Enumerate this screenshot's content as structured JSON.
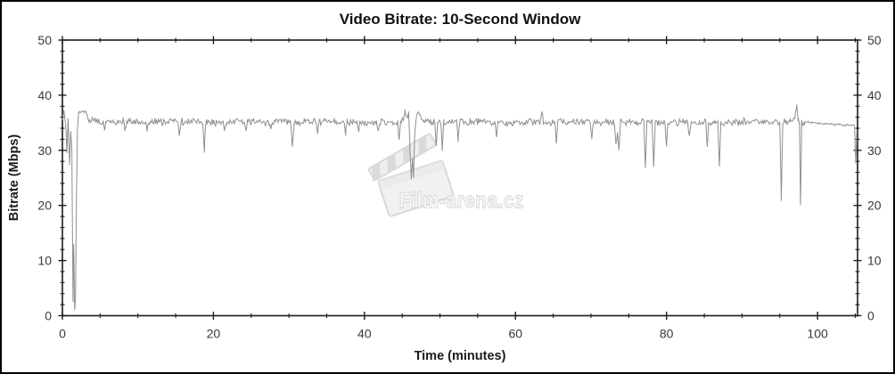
{
  "chart_data": {
    "type": "line",
    "title": "Video Bitrate: 10-Second Window",
    "xlabel": "Time (minutes)",
    "ylabel": "Bitrate (Mbps)",
    "xlim": [
      0,
      105.3
    ],
    "ylim": [
      0,
      50
    ],
    "x_major_ticks": [
      0,
      20,
      40,
      60,
      80,
      100
    ],
    "x_minor_step": 5,
    "y_major_ticks": [
      0,
      10,
      20,
      30,
      40,
      50
    ],
    "y_minor_step": 2,
    "grid": false,
    "legend": "none",
    "axis_color": "#1c1c1c",
    "tick_label_color": "#3a3a3a",
    "series": [
      {
        "name": "video-bitrate-10s-window",
        "color": "#8f8f8f",
        "baseline_mbps": 35.1,
        "keypoints": [
          [
            0,
            35.5
          ],
          [
            0.2,
            37.3
          ],
          [
            0.45,
            34.3
          ],
          [
            0.6,
            29.5
          ],
          [
            0.75,
            35.8
          ],
          [
            0.95,
            27.3
          ],
          [
            1.1,
            33.5
          ],
          [
            1.25,
            30.0
          ],
          [
            1.4,
            2.5
          ],
          [
            1.5,
            13.0
          ],
          [
            1.62,
            1.0
          ],
          [
            1.75,
            3.2
          ],
          [
            1.85,
            21.0
          ],
          [
            2.0,
            34.0
          ],
          [
            2.15,
            36.9
          ],
          [
            3.1,
            37.0
          ],
          [
            3.5,
            35.4
          ],
          [
            5.4,
            35.1
          ],
          [
            5.6,
            33.6
          ],
          [
            5.8,
            35.1
          ],
          [
            8.1,
            35.2
          ],
          [
            8.3,
            33.5
          ],
          [
            8.5,
            35.2
          ],
          [
            11.0,
            35.1
          ],
          [
            11.2,
            33.7
          ],
          [
            11.4,
            35.1
          ],
          [
            15.3,
            35.2
          ],
          [
            15.5,
            32.6
          ],
          [
            15.7,
            35.2
          ],
          [
            18.6,
            35.1
          ],
          [
            18.8,
            30.3
          ],
          [
            19.0,
            35.1
          ],
          [
            21.3,
            35.1
          ],
          [
            21.5,
            33.5
          ],
          [
            21.7,
            35.1
          ],
          [
            24.1,
            35.2
          ],
          [
            24.3,
            33.2
          ],
          [
            24.5,
            35.2
          ],
          [
            27.4,
            35.1
          ],
          [
            27.6,
            33.3
          ],
          [
            27.8,
            35.1
          ],
          [
            30.2,
            35.1
          ],
          [
            30.45,
            30.6
          ],
          [
            30.7,
            35.1
          ],
          [
            33.6,
            35.1
          ],
          [
            33.8,
            33.4
          ],
          [
            34.0,
            35.1
          ],
          [
            37.3,
            35.2
          ],
          [
            37.5,
            33.3
          ],
          [
            37.7,
            35.2
          ],
          [
            39.0,
            35.1
          ],
          [
            39.2,
            33.4
          ],
          [
            39.4,
            35.1
          ],
          [
            41.6,
            35.1
          ],
          [
            41.8,
            33.2
          ],
          [
            42.0,
            35.1
          ],
          [
            44.4,
            35.1
          ],
          [
            44.6,
            31.4
          ],
          [
            44.8,
            35.1
          ],
          [
            45.2,
            36.0
          ],
          [
            45.35,
            37.2
          ],
          [
            45.6,
            35.6
          ],
          [
            45.85,
            37.0
          ],
          [
            46.05,
            30.0
          ],
          [
            46.2,
            25.0
          ],
          [
            46.35,
            29.0
          ],
          [
            46.5,
            24.6
          ],
          [
            46.65,
            33.0
          ],
          [
            46.9,
            36.8
          ],
          [
            47.4,
            36.4
          ],
          [
            47.8,
            35.3
          ],
          [
            49.3,
            35.1
          ],
          [
            49.5,
            31.0
          ],
          [
            49.7,
            35.1
          ],
          [
            50.1,
            35.1
          ],
          [
            50.3,
            30.2
          ],
          [
            50.5,
            35.1
          ],
          [
            52.2,
            35.1
          ],
          [
            52.4,
            32.2
          ],
          [
            52.6,
            35.1
          ],
          [
            55.0,
            35.2
          ],
          [
            57.3,
            35.1
          ],
          [
            57.5,
            32.4
          ],
          [
            57.7,
            35.1
          ],
          [
            60.0,
            35.1
          ],
          [
            63.3,
            35.2
          ],
          [
            63.5,
            37.4
          ],
          [
            63.7,
            35.2
          ],
          [
            65.2,
            35.1
          ],
          [
            65.4,
            31.9
          ],
          [
            65.6,
            35.1
          ],
          [
            68.0,
            35.1
          ],
          [
            69.9,
            35.1
          ],
          [
            70.1,
            32.2
          ],
          [
            70.3,
            35.1
          ],
          [
            73.1,
            35.1
          ],
          [
            73.3,
            30.9
          ],
          [
            73.5,
            33.5
          ],
          [
            73.7,
            30.4
          ],
          [
            73.9,
            35.1
          ],
          [
            76.0,
            35.1
          ],
          [
            77.0,
            35.1
          ],
          [
            77.2,
            26.9
          ],
          [
            77.4,
            35.1
          ],
          [
            78.1,
            35.1
          ],
          [
            78.3,
            26.5
          ],
          [
            78.5,
            35.1
          ],
          [
            79.8,
            35.1
          ],
          [
            80.0,
            30.9
          ],
          [
            80.2,
            35.1
          ],
          [
            82.8,
            35.1
          ],
          [
            83.0,
            32.4
          ],
          [
            83.2,
            35.1
          ],
          [
            85.2,
            35.1
          ],
          [
            85.4,
            30.8
          ],
          [
            85.6,
            35.1
          ],
          [
            86.8,
            35.1
          ],
          [
            87.0,
            26.7
          ],
          [
            87.2,
            35.1
          ],
          [
            90.0,
            35.2
          ],
          [
            93.0,
            35.1
          ],
          [
            95.0,
            35.1
          ],
          [
            95.2,
            20.9
          ],
          [
            95.4,
            35.1
          ],
          [
            96.3,
            35.3
          ],
          [
            97.0,
            35.5
          ],
          [
            97.25,
            38.6
          ],
          [
            97.45,
            35.5
          ],
          [
            97.6,
            35.1
          ],
          [
            97.75,
            20.3
          ],
          [
            97.9,
            35.1
          ],
          [
            98.3,
            35.2
          ],
          [
            100.0,
            34.9
          ],
          [
            102.0,
            34.7
          ],
          [
            104.0,
            34.6
          ],
          [
            104.9,
            34.5
          ],
          [
            105.05,
            27.5
          ],
          [
            105.2,
            33.5
          ]
        ],
        "noise_zones": [
          [
            0,
            2.05,
            0
          ],
          [
            2.05,
            3.4,
            0.3
          ],
          [
            3.4,
            98.3,
            0.75
          ],
          [
            98.3,
            105.3,
            0.22
          ]
        ]
      }
    ]
  },
  "watermark": {
    "text": "Film-arena.cz",
    "color": "#d6d6d6"
  }
}
